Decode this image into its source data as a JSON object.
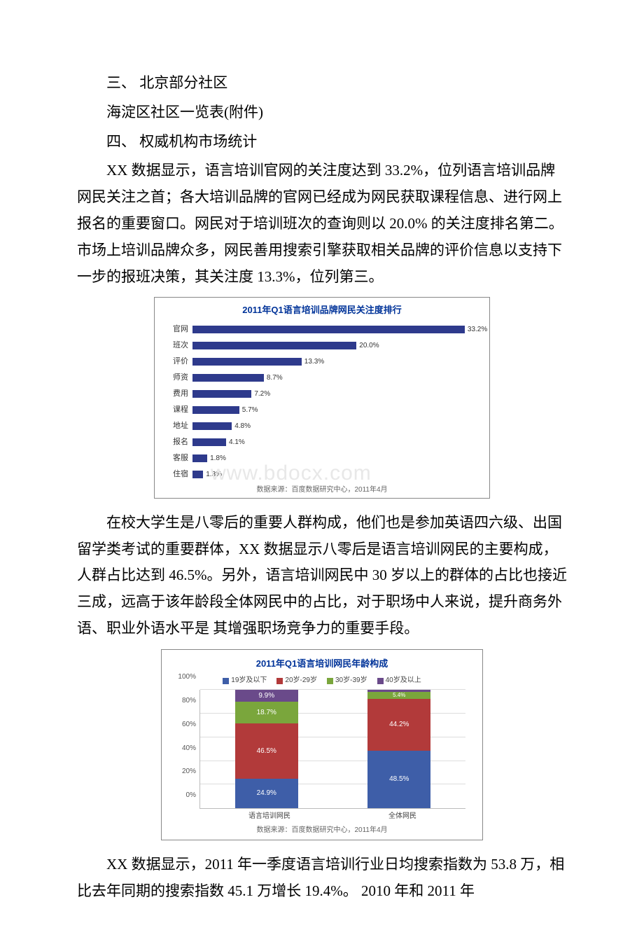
{
  "sections": {
    "s3_title": "三、 北京部分社区",
    "s3_line": "海淀区社区一览表(附件)",
    "s4_title": "四、 权威机构市场统计",
    "p1": "XX 数据显示，语言培训官网的关注度达到 33.2%，位列语言培训品牌网民关注之首；各大培训品牌的官网已经成为网民获取课程信息、进行网上报名的重要窗口。网民对于培训班次的查询则以 20.0% 的关注度排名第二。市场上培训品牌众多，网民善用搜索引擎获取相关品牌的评价信息以支持下一步的报班决策，其关注度 13.3%，位列第三。",
    "p2": "在校大学生是八零后的重要人群构成，他们也是参加英语四六级、出国留学类考试的重要群体，XX 数据显示八零后是语言培训网民的主要构成，人群占比达到 46.5%。另外，语言培训网民中 30 岁以上的群体的占比也接近三成，远高于该年龄段全体网民中的占比，对于职场中人来说，提升商务外语、职业外语水平是 其增强职场竞争力的重要手段。",
    "p3": "XX 数据显示，2011 年一季度语言培训行业日均搜索指数为 53.8 万，相比去年同期的搜索指数 45.1 万增长 19.4%。 2010 年和 2011 年"
  },
  "chart1": {
    "type": "bar-horizontal",
    "title": "2011年Q1语言培训品牌网民关注度排行",
    "bar_color": "#2e3a8c",
    "xlim": 35,
    "label_fontsize": 11,
    "source": "数据来源：百度数据研究中心，2011年4月",
    "watermark_text": "www.bdocx.com",
    "watermark_color": "#e8e8e8",
    "items": [
      {
        "label": "官网",
        "value": 33.2,
        "pct": "33.2%"
      },
      {
        "label": "班次",
        "value": 20.0,
        "pct": "20.0%"
      },
      {
        "label": "评价",
        "value": 13.3,
        "pct": "13.3%"
      },
      {
        "label": "师资",
        "value": 8.7,
        "pct": "8.7%"
      },
      {
        "label": "费用",
        "value": 7.2,
        "pct": "7.2%"
      },
      {
        "label": "课程",
        "value": 5.7,
        "pct": "5.7%"
      },
      {
        "label": "地址",
        "value": 4.8,
        "pct": "4.8%"
      },
      {
        "label": "报名",
        "value": 4.1,
        "pct": "4.1%"
      },
      {
        "label": "客服",
        "value": 1.8,
        "pct": "1.8%"
      },
      {
        "label": "住宿",
        "value": 1.3,
        "pct": "1.3%"
      }
    ]
  },
  "chart2": {
    "type": "bar-stacked",
    "title": "2011年Q1语言培训网民年龄构成",
    "source": "数据来源：百度数据研究中心，2011年4月",
    "ylim": 100,
    "ytick_step": 20,
    "yticks": [
      "0%",
      "20%",
      "40%",
      "60%",
      "80%",
      "100%"
    ],
    "legend": [
      {
        "label": "19岁及以下",
        "color": "#3e5ea8"
      },
      {
        "label": "20岁-29岁",
        "color": "#b23a3a"
      },
      {
        "label": "30岁-39岁",
        "color": "#7aa63c"
      },
      {
        "label": "40岁及以上",
        "color": "#6a4a8a"
      }
    ],
    "columns": [
      {
        "xlabel": "语言培训网民",
        "segments": [
          {
            "color": "#3e5ea8",
            "value": 24.9,
            "text": "24.9%"
          },
          {
            "color": "#b23a3a",
            "value": 46.5,
            "text": "46.5%"
          },
          {
            "color": "#7aa63c",
            "value": 18.7,
            "text": "18.7%"
          },
          {
            "color": "#6a4a8a",
            "value": 9.9,
            "text": "9.9%"
          }
        ]
      },
      {
        "xlabel": "全体网民",
        "segments": [
          {
            "color": "#3e5ea8",
            "value": 48.5,
            "text": "48.5%"
          },
          {
            "color": "#b23a3a",
            "value": 44.2,
            "text": "44.2%"
          },
          {
            "color": "#7aa63c",
            "value": 5.4,
            "text": "5.4%"
          },
          {
            "color": "#6a4a8a",
            "value": 1.9,
            "text": "1.9%"
          }
        ]
      }
    ]
  }
}
